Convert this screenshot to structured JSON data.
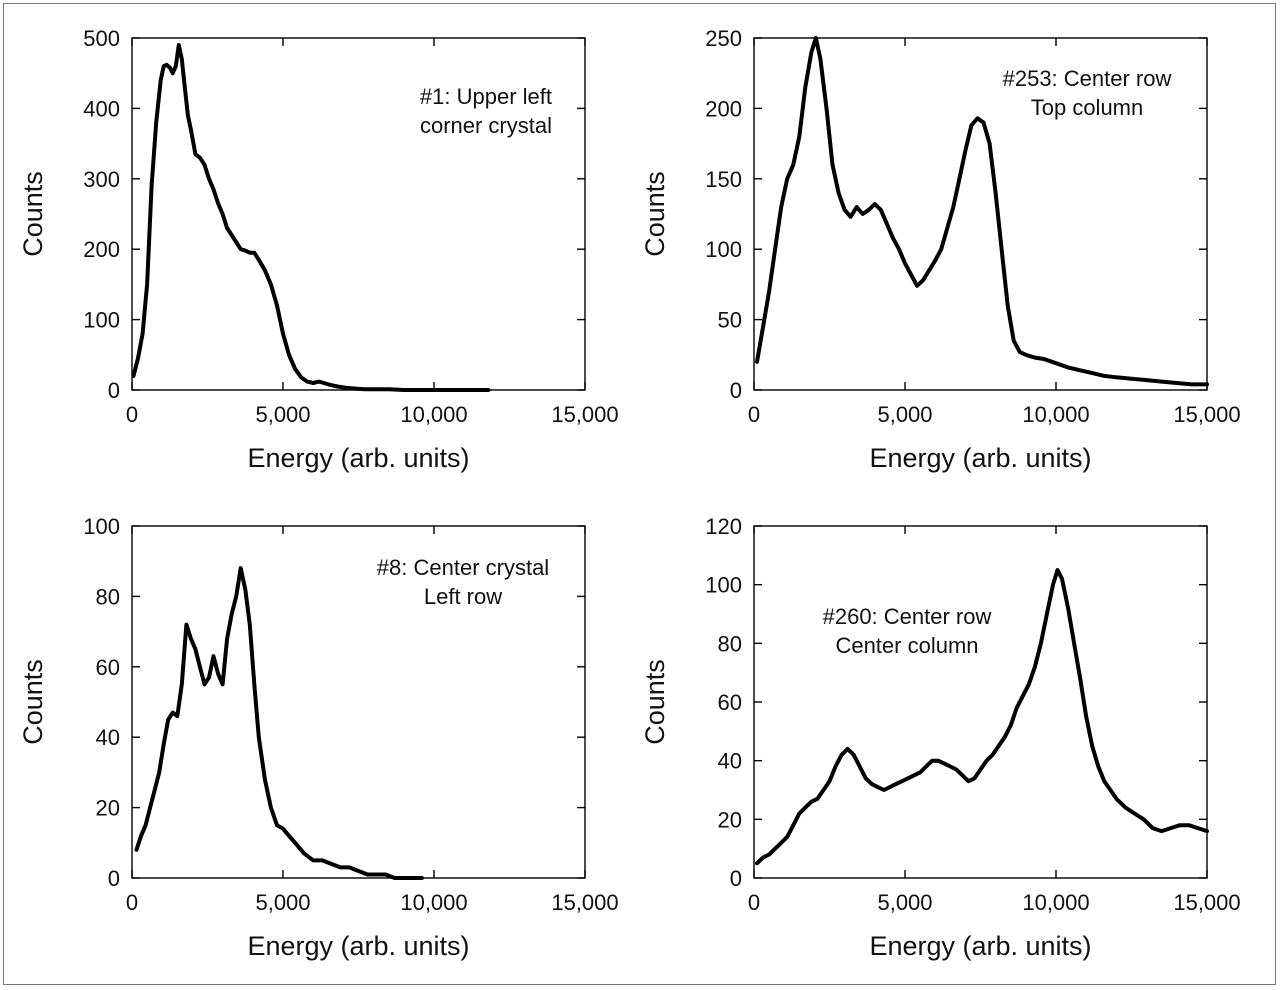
{
  "chart_data": [
    {
      "type": "line",
      "xlabel": "Energy (arb. units)",
      "ylabel": "Counts",
      "xlim": [
        0,
        15000
      ],
      "ylim": [
        0,
        500
      ],
      "xticks": [
        0,
        5000,
        10000,
        15000
      ],
      "xtick_labels": [
        "0",
        "5,000",
        "10,000",
        "15,000"
      ],
      "yticks": [
        0,
        100,
        200,
        300,
        400,
        500
      ],
      "ytick_labels": [
        "0",
        "100",
        "200",
        "300",
        "400",
        "500"
      ],
      "annotation": [
        "#1: Upper left",
        "corner crystal"
      ],
      "annotation_align": "end",
      "grid": false,
      "series": [
        {
          "x": [
            50,
            200,
            350,
            500,
            650,
            800,
            950,
            1050,
            1150,
            1250,
            1350,
            1450,
            1550,
            1650,
            1750,
            1850,
            1950,
            2100,
            2250,
            2400,
            2550,
            2700,
            2850,
            3000,
            3150,
            3300,
            3450,
            3600,
            3750,
            3900,
            4050,
            4200,
            4400,
            4600,
            4800,
            5000,
            5200,
            5400,
            5600,
            5800,
            6000,
            6200,
            6500,
            6800,
            7100,
            7400,
            7700,
            8000,
            8500,
            9000,
            9500,
            10000,
            10500,
            11000,
            11800
          ],
          "y": [
            20,
            45,
            80,
            150,
            290,
            380,
            440,
            460,
            462,
            458,
            450,
            460,
            490,
            470,
            430,
            390,
            370,
            335,
            330,
            320,
            300,
            285,
            265,
            250,
            230,
            220,
            210,
            200,
            198,
            195,
            195,
            185,
            170,
            150,
            120,
            80,
            50,
            30,
            18,
            12,
            10,
            12,
            8,
            5,
            3,
            2,
            1,
            1,
            1,
            0,
            0,
            0,
            0,
            0,
            0
          ]
        }
      ]
    },
    {
      "type": "line",
      "xlabel": "Energy (arb. units)",
      "ylabel": "Counts",
      "xlim": [
        0,
        15000
      ],
      "ylim": [
        0,
        250
      ],
      "xticks": [
        0,
        5000,
        10000,
        15000
      ],
      "xtick_labels": [
        "0",
        "5,000",
        "10,000",
        "15,000"
      ],
      "yticks": [
        0,
        50,
        100,
        150,
        200,
        250
      ],
      "ytick_labels": [
        "0",
        "50",
        "100",
        "150",
        "200",
        "250"
      ],
      "annotation": [
        "#253: Center row",
        "Top column"
      ],
      "annotation_align": "middle",
      "grid": false,
      "series": [
        {
          "x": [
            100,
            300,
            500,
            700,
            900,
            1100,
            1300,
            1500,
            1700,
            1900,
            2050,
            2200,
            2400,
            2600,
            2800,
            3000,
            3200,
            3400,
            3600,
            3800,
            4000,
            4200,
            4400,
            4600,
            4800,
            5000,
            5200,
            5400,
            5600,
            5800,
            6000,
            6200,
            6400,
            6600,
            6800,
            7000,
            7200,
            7400,
            7600,
            7800,
            8000,
            8200,
            8400,
            8600,
            8800,
            9000,
            9300,
            9600,
            10000,
            10400,
            10800,
            11200,
            11600,
            12000,
            12500,
            13000,
            13500,
            14000,
            14500,
            15000
          ],
          "y": [
            20,
            45,
            70,
            100,
            130,
            150,
            160,
            180,
            215,
            240,
            250,
            235,
            200,
            160,
            140,
            128,
            123,
            130,
            125,
            128,
            132,
            128,
            118,
            108,
            100,
            90,
            82,
            74,
            78,
            85,
            92,
            100,
            115,
            130,
            150,
            170,
            188,
            193,
            190,
            175,
            140,
            100,
            60,
            35,
            27,
            25,
            23,
            22,
            19,
            16,
            14,
            12,
            10,
            9,
            8,
            7,
            6,
            5,
            4,
            4
          ]
        }
      ]
    },
    {
      "type": "line",
      "xlabel": "Energy (arb. units)",
      "ylabel": "Counts",
      "xlim": [
        0,
        15000
      ],
      "ylim": [
        0,
        100
      ],
      "xticks": [
        0,
        5000,
        10000,
        15000
      ],
      "xtick_labels": [
        "0",
        "5,000",
        "10,000",
        "15,000"
      ],
      "yticks": [
        0,
        20,
        40,
        60,
        80,
        100
      ],
      "ytick_labels": [
        "0",
        "20",
        "40",
        "60",
        "80",
        "100"
      ],
      "annotation": [
        "#8: Center crystal",
        "Left row"
      ],
      "annotation_align": "middle",
      "grid": false,
      "series": [
        {
          "x": [
            150,
            300,
            450,
            600,
            750,
            900,
            1050,
            1200,
            1350,
            1500,
            1650,
            1800,
            1950,
            2100,
            2250,
            2400,
            2550,
            2700,
            2850,
            3000,
            3150,
            3300,
            3450,
            3600,
            3750,
            3900,
            4050,
            4200,
            4400,
            4600,
            4800,
            5000,
            5200,
            5400,
            5700,
            6000,
            6300,
            6600,
            6900,
            7200,
            7500,
            7800,
            8100,
            8400,
            8700,
            9000,
            9300,
            9600
          ],
          "y": [
            8,
            12,
            15,
            20,
            25,
            30,
            38,
            45,
            47,
            46,
            55,
            72,
            68,
            65,
            60,
            55,
            57,
            63,
            58,
            55,
            68,
            75,
            80,
            88,
            82,
            72,
            55,
            40,
            28,
            20,
            15,
            14,
            12,
            10,
            7,
            5,
            5,
            4,
            3,
            3,
            2,
            1,
            1,
            1,
            0,
            0,
            0,
            0
          ]
        }
      ]
    },
    {
      "type": "line",
      "xlabel": "Energy (arb. units)",
      "ylabel": "Counts",
      "xlim": [
        0,
        15000
      ],
      "ylim": [
        0,
        120
      ],
      "xticks": [
        0,
        5000,
        10000,
        15000
      ],
      "xtick_labels": [
        "0",
        "5,000",
        "10,000",
        "15,000"
      ],
      "yticks": [
        0,
        20,
        40,
        60,
        80,
        100,
        120
      ],
      "ytick_labels": [
        "0",
        "20",
        "40",
        "60",
        "80",
        "100",
        "120"
      ],
      "annotation": [
        "#260: Center row",
        "Center column"
      ],
      "annotation_align": "middle",
      "grid": false,
      "series": [
        {
          "x": [
            100,
            300,
            500,
            700,
            900,
            1100,
            1300,
            1500,
            1700,
            1900,
            2100,
            2300,
            2500,
            2700,
            2900,
            3100,
            3300,
            3500,
            3700,
            3900,
            4100,
            4300,
            4500,
            4700,
            4900,
            5100,
            5300,
            5500,
            5700,
            5900,
            6100,
            6300,
            6500,
            6700,
            6900,
            7100,
            7300,
            7500,
            7700,
            7900,
            8100,
            8300,
            8500,
            8700,
            8900,
            9100,
            9300,
            9500,
            9700,
            9900,
            10050,
            10200,
            10400,
            10600,
            10800,
            11000,
            11200,
            11400,
            11600,
            11800,
            12000,
            12300,
            12600,
            12900,
            13200,
            13500,
            13800,
            14100,
            14400,
            14700,
            15000
          ],
          "y": [
            5,
            7,
            8,
            10,
            12,
            14,
            18,
            22,
            24,
            26,
            27,
            30,
            33,
            38,
            42,
            44,
            42,
            38,
            34,
            32,
            31,
            30,
            31,
            32,
            33,
            34,
            35,
            36,
            38,
            40,
            40,
            39,
            38,
            37,
            35,
            33,
            34,
            37,
            40,
            42,
            45,
            48,
            52,
            58,
            62,
            66,
            72,
            80,
            90,
            100,
            105,
            102,
            92,
            80,
            68,
            55,
            45,
            38,
            33,
            30,
            27,
            24,
            22,
            20,
            17,
            16,
            17,
            18,
            18,
            17,
            16
          ]
        }
      ]
    }
  ]
}
